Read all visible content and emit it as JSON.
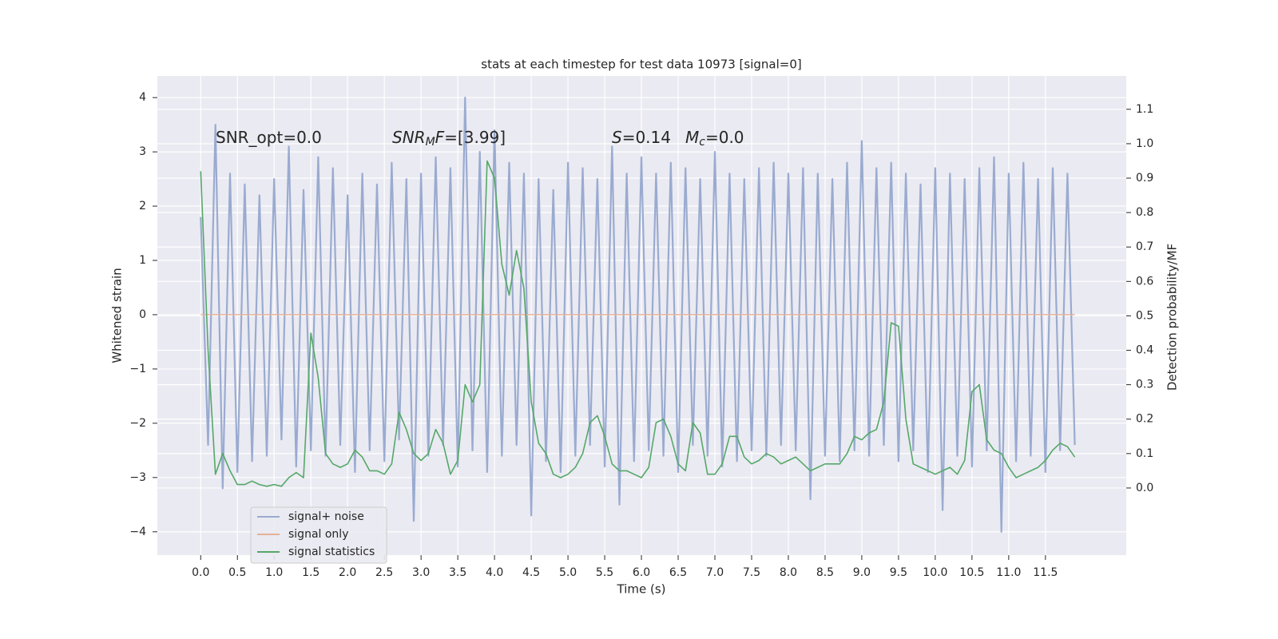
{
  "chart_data": {
    "type": "line",
    "title": "stats at each timestep for test data 10973 [signal=0]",
    "xlabel": "Time (s)",
    "ylabel": "Whitened strain",
    "y2label": "Detection probability/MF",
    "annotations": [
      [
        {
          "text": "SNR_opt=0.0",
          "style": "normal"
        }
      ],
      [
        {
          "text": "SNR",
          "style": "italic"
        },
        {
          "text": "M",
          "style": "sub"
        },
        {
          "text": "F",
          "style": "italic"
        },
        {
          "text": "=[3.99]",
          "style": "normal"
        }
      ],
      [
        {
          "text": "S",
          "style": "italic"
        },
        {
          "text": "=0.14",
          "style": "normal"
        }
      ],
      [
        {
          "text": "M",
          "style": "italic"
        },
        {
          "text": "c",
          "style": "sub"
        },
        {
          "text": "=0.0",
          "style": "normal"
        }
      ]
    ],
    "x": [
      0,
      0.1,
      0.2,
      0.3,
      0.4,
      0.5,
      0.6,
      0.7,
      0.8,
      0.9,
      1,
      1.1,
      1.2,
      1.3,
      1.4,
      1.5,
      1.6,
      1.7,
      1.8,
      1.9,
      2,
      2.1,
      2.2,
      2.3,
      2.4,
      2.5,
      2.6,
      2.7,
      2.8,
      2.9,
      3,
      3.1,
      3.2,
      3.3,
      3.4,
      3.5,
      3.6,
      3.7,
      3.8,
      3.9,
      4,
      4.1,
      4.2,
      4.3,
      4.4,
      4.5,
      4.6,
      4.7,
      4.8,
      4.9,
      5,
      5.1,
      5.2,
      5.3,
      5.4,
      5.5,
      5.6,
      5.7,
      5.8,
      5.9,
      6,
      6.1,
      6.2,
      6.3,
      6.4,
      6.5,
      6.6,
      6.7,
      6.8,
      6.9,
      7,
      7.1,
      7.2,
      7.3,
      7.4,
      7.5,
      7.6,
      7.7,
      7.8,
      7.9,
      8,
      8.1,
      8.2,
      8.3,
      8.4,
      8.5,
      8.6,
      8.7,
      8.8,
      8.9,
      9,
      9.1,
      9.2,
      9.3,
      9.4,
      9.5,
      9.6,
      9.7,
      9.8,
      9.9,
      10,
      10.1,
      10.2,
      10.3,
      10.4,
      10.5,
      10.6,
      10.7,
      10.8,
      10.9,
      11,
      11.1,
      11.2,
      11.3,
      11.4,
      11.5,
      11.6,
      11.7,
      11.8,
      11.9
    ],
    "series": [
      {
        "name": "signal+ noise",
        "color": "#9aabd0",
        "values": [
          1.8,
          -2.4,
          3.5,
          -3.2,
          2.6,
          -2.9,
          2.4,
          -2.7,
          2.2,
          -2.6,
          2.5,
          -2.3,
          3.1,
          -2.8,
          2.3,
          -2.5,
          2.9,
          -2.6,
          2.7,
          -2.4,
          2.2,
          -2.9,
          2.6,
          -2.5,
          2.4,
          -2.7,
          2.8,
          -2.3,
          2.5,
          -3.8,
          2.6,
          -2.6,
          2.9,
          -2.4,
          2.7,
          -2.8,
          4.0,
          -2.5,
          3.0,
          -2.9,
          3.4,
          -2.6,
          2.8,
          -2.4,
          2.6,
          -3.7,
          2.5,
          -2.7,
          2.3,
          -2.9,
          2.8,
          -2.6,
          2.7,
          -2.4,
          2.5,
          -2.8,
          3.1,
          -3.5,
          2.6,
          -2.7,
          2.9,
          -2.5,
          2.6,
          -2.6,
          2.8,
          -2.9,
          2.7,
          -2.4,
          2.5,
          -2.6,
          3.0,
          -2.8,
          2.6,
          -2.7,
          2.5,
          -2.5,
          2.7,
          -2.6,
          2.8,
          -2.4,
          2.6,
          -2.5,
          2.7,
          -3.4,
          2.6,
          -2.6,
          2.5,
          -2.7,
          2.8,
          -2.5,
          3.2,
          -2.6,
          2.7,
          -2.4,
          2.8,
          -2.7,
          2.6,
          -2.5,
          2.4,
          -2.9,
          2.7,
          -3.6,
          2.6,
          -2.6,
          2.5,
          -2.8,
          2.7,
          -2.5,
          2.9,
          -4.0,
          2.6,
          -2.7,
          2.8,
          -2.6,
          2.5,
          -2.9,
          2.7,
          -2.5,
          2.6,
          -2.4
        ]
      },
      {
        "name": "signal only",
        "color": "#e6b199",
        "values": [
          0,
          0,
          0,
          0,
          0,
          0,
          0,
          0,
          0,
          0,
          0,
          0,
          0,
          0,
          0,
          0,
          0,
          0,
          0,
          0,
          0,
          0,
          0,
          0,
          0,
          0,
          0,
          0,
          0,
          0,
          0,
          0,
          0,
          0,
          0,
          0,
          0,
          0,
          0,
          0,
          0,
          0,
          0,
          0,
          0,
          0,
          0,
          0,
          0,
          0,
          0,
          0,
          0,
          0,
          0,
          0,
          0,
          0,
          0,
          0,
          0,
          0,
          0,
          0,
          0,
          0,
          0,
          0,
          0,
          0,
          0,
          0,
          0,
          0,
          0,
          0,
          0,
          0,
          0,
          0,
          0,
          0,
          0,
          0,
          0,
          0,
          0,
          0,
          0,
          0,
          0,
          0,
          0,
          0,
          0,
          0,
          0,
          0,
          0,
          0,
          0,
          0,
          0,
          0,
          0,
          0,
          0,
          0,
          0,
          0,
          0,
          0,
          0,
          0,
          0,
          0,
          0,
          0,
          0,
          0
        ]
      },
      {
        "name": "signal statistics",
        "color": "#55a868",
        "axis": "y2",
        "values": [
          0.92,
          0.4,
          0.04,
          0.1,
          0.05,
          0.01,
          0.01,
          0.02,
          0.01,
          0.005,
          0.01,
          0.005,
          0.03,
          0.045,
          0.03,
          0.45,
          0.32,
          0.1,
          0.07,
          0.06,
          0.07,
          0.11,
          0.09,
          0.05,
          0.05,
          0.04,
          0.07,
          0.22,
          0.17,
          0.1,
          0.08,
          0.1,
          0.17,
          0.13,
          0.04,
          0.08,
          0.3,
          0.25,
          0.3,
          0.95,
          0.9,
          0.65,
          0.56,
          0.69,
          0.58,
          0.25,
          0.13,
          0.1,
          0.04,
          0.03,
          0.04,
          0.06,
          0.1,
          0.19,
          0.21,
          0.15,
          0.07,
          0.05,
          0.05,
          0.04,
          0.03,
          0.06,
          0.19,
          0.2,
          0.15,
          0.07,
          0.05,
          0.19,
          0.16,
          0.04,
          0.04,
          0.07,
          0.15,
          0.15,
          0.09,
          0.07,
          0.08,
          0.1,
          0.09,
          0.07,
          0.08,
          0.09,
          0.07,
          0.05,
          0.06,
          0.07,
          0.07,
          0.07,
          0.1,
          0.15,
          0.14,
          0.16,
          0.17,
          0.25,
          0.48,
          0.47,
          0.2,
          0.07,
          0.06,
          0.05,
          0.04,
          0.05,
          0.06,
          0.04,
          0.08,
          0.28,
          0.3,
          0.14,
          0.11,
          0.1,
          0.06,
          0.03,
          0.04,
          0.05,
          0.06,
          0.08,
          0.11,
          0.13,
          0.12,
          0.09
        ]
      }
    ],
    "xlim": [
      -0.59,
      12.6
    ],
    "ylim": [
      -4.43,
      4.4
    ],
    "y2lim": [
      -0.195,
      1.197
    ],
    "xticks": [
      {
        "value": 0,
        "label": "0.0"
      },
      {
        "value": 0.5,
        "label": "0.5"
      },
      {
        "value": 1,
        "label": "1.0"
      },
      {
        "value": 1.5,
        "label": "1.5"
      },
      {
        "value": 2,
        "label": "2.0"
      },
      {
        "value": 2.5,
        "label": "2.5"
      },
      {
        "value": 3,
        "label": "3.0"
      },
      {
        "value": 3.5,
        "label": "3.5"
      },
      {
        "value": 4,
        "label": "4.0"
      },
      {
        "value": 4.5,
        "label": "4.5"
      },
      {
        "value": 5,
        "label": "5.0"
      },
      {
        "value": 5.5,
        "label": "5.5"
      },
      {
        "value": 6,
        "label": "6.0"
      },
      {
        "value": 6.5,
        "label": "6.5"
      },
      {
        "value": 7,
        "label": "7.0"
      },
      {
        "value": 7.5,
        "label": "7.5"
      },
      {
        "value": 8,
        "label": "8.0"
      },
      {
        "value": 8.5,
        "label": "8.5"
      },
      {
        "value": 9,
        "label": "9.0"
      },
      {
        "value": 9.5,
        "label": "9.5"
      },
      {
        "value": 10,
        "label": "10.0"
      },
      {
        "value": 10.5,
        "label": "10.5"
      },
      {
        "value": 11,
        "label": "11.0"
      },
      {
        "value": 11.5,
        "label": "11.5"
      }
    ],
    "yticks": [
      {
        "value": -4,
        "label": "−4"
      },
      {
        "value": -3,
        "label": "−3"
      },
      {
        "value": -2,
        "label": "−2"
      },
      {
        "value": -1,
        "label": "−1"
      },
      0,
      1,
      2,
      3,
      4
    ],
    "y2ticks": [
      {
        "value": 0,
        "label": "0.0"
      },
      {
        "value": 0.1,
        "label": "0.1"
      },
      {
        "value": 0.2,
        "label": "0.2"
      },
      {
        "value": 0.3,
        "label": "0.3"
      },
      {
        "value": 0.4,
        "label": "0.4"
      },
      {
        "value": 0.5,
        "label": "0.5"
      },
      {
        "value": 0.6,
        "label": "0.6"
      },
      {
        "value": 0.7,
        "label": "0.7"
      },
      {
        "value": 0.8,
        "label": "0.8"
      },
      {
        "value": 0.9,
        "label": "0.9"
      },
      {
        "value": 1,
        "label": "1.0"
      },
      {
        "value": 1.1,
        "label": "1.1"
      }
    ],
    "grid": true,
    "legend": "lower left"
  }
}
